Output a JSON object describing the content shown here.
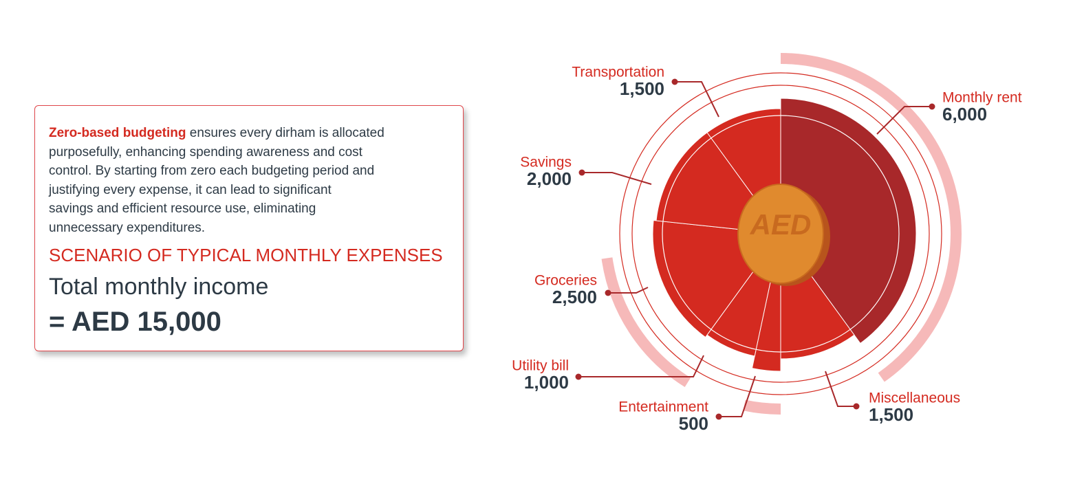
{
  "text_box": {
    "highlight": "Zero-based budgeting",
    "lines": [
      " ensures every dirham is allocated",
      "purposefully, enhancing spending awareness and cost",
      "control. By starting from zero each budgeting period and",
      "justifying every expense, it can lead to significant",
      "savings and efficient resource use, eliminating",
      "unnecessary expenditures."
    ],
    "heading": "SCENARIO OF TYPICAL MONTHLY EXPENSES",
    "income_label": "Total monthly income",
    "income_value": "= AED 15,000"
  },
  "chart_data": {
    "type": "pie",
    "center_label": "AED",
    "categories": [
      "Monthly rent",
      "Miscellaneous",
      "Entertainment",
      "Utility bill",
      "Groceries",
      "Savings",
      "Transportation"
    ],
    "values": [
      6000,
      1500,
      500,
      1000,
      2500,
      2000,
      1500
    ],
    "value_labels": [
      "6,000",
      "1,500",
      "500",
      "1,000",
      "2,500",
      "2,000",
      "1,500"
    ],
    "colors": [
      "#a8282a",
      "#d42a20",
      "#d42a20",
      "#d42a20",
      "#d42a20",
      "#d42a20",
      "#d42a20"
    ]
  }
}
